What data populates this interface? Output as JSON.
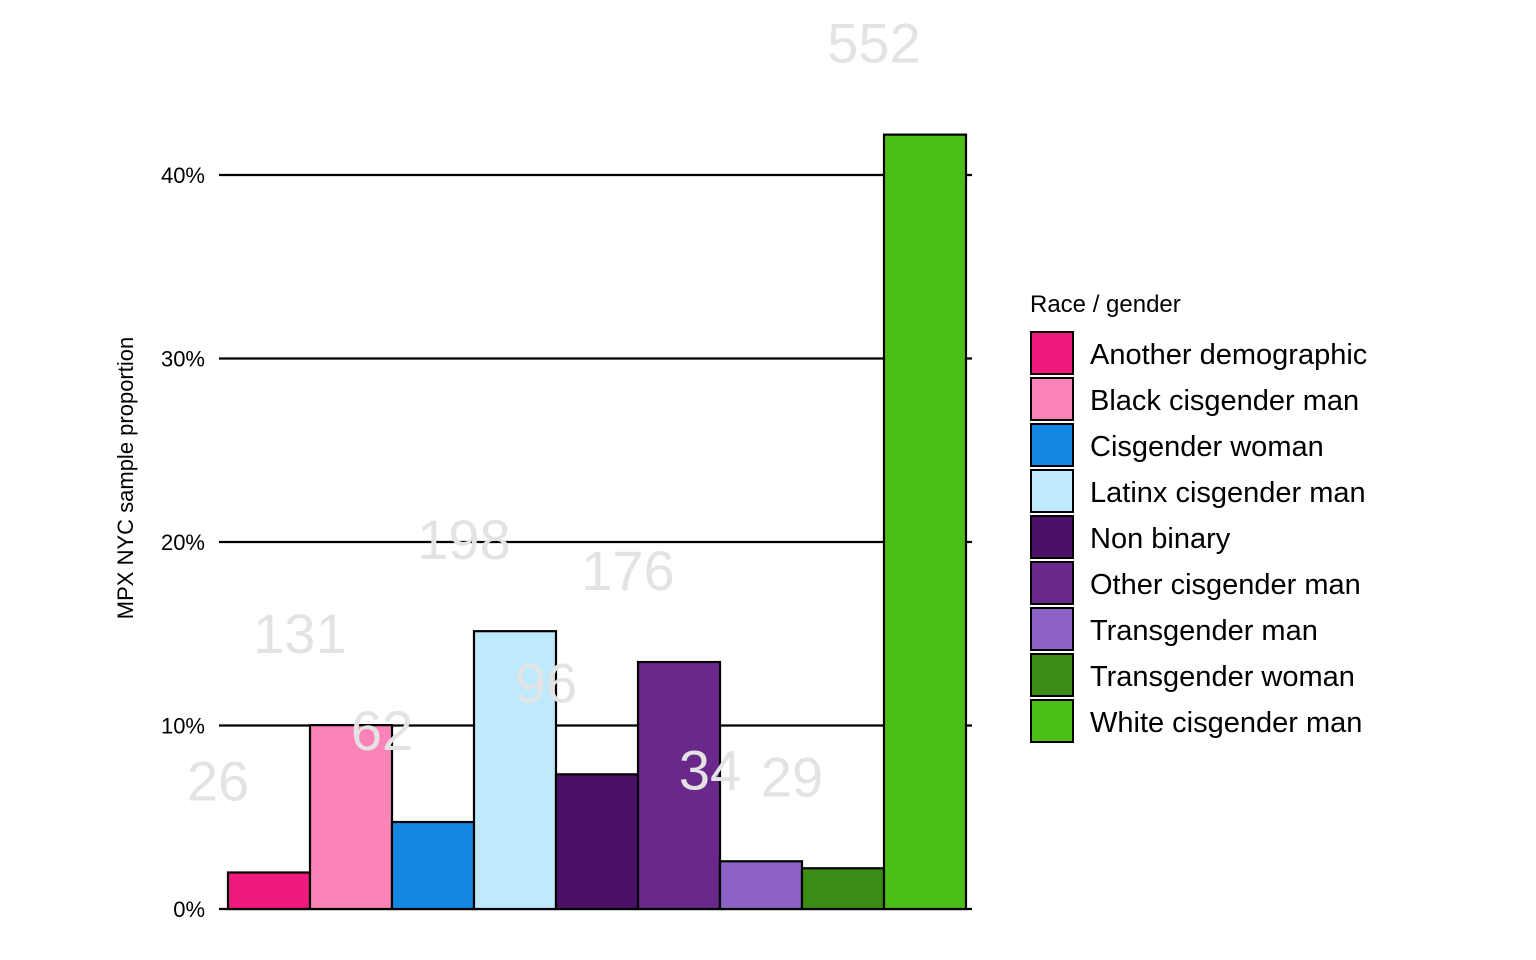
{
  "chart_data": {
    "type": "bar",
    "ylabel": "MPX NYC sample proportion",
    "xlabel": "",
    "ylim": [
      0,
      0.42
    ],
    "yticks": [
      0,
      0.1,
      0.2,
      0.3,
      0.4
    ],
    "ytick_labels": [
      "0%",
      "10%",
      "20%",
      "30%",
      "40%"
    ],
    "grid": "horizontal major lines",
    "legend": {
      "title": "Race / gender",
      "placement": "right"
    },
    "categories": [
      "Another demographic",
      "Black cisgender man",
      "Cisgender woman",
      "Latinx cisgender man",
      "Non binary",
      "Other cisgender man",
      "Transgender man",
      "Transgender woman",
      "White cisgender man"
    ],
    "values": [
      0.0199,
      0.1002,
      0.0474,
      0.1514,
      0.0734,
      0.1346,
      0.026,
      0.0222,
      0.422
    ],
    "counts": [
      "26",
      "131",
      "62",
      "198",
      "96",
      "176",
      "34",
      "29",
      "552"
    ],
    "colors": [
      "#f0197d",
      "#fc83b8",
      "#1287e3",
      "#bfeafe",
      "#4a1166",
      "#69288a",
      "#8c62c6",
      "#3a8c15",
      "#4bbf17"
    ]
  }
}
